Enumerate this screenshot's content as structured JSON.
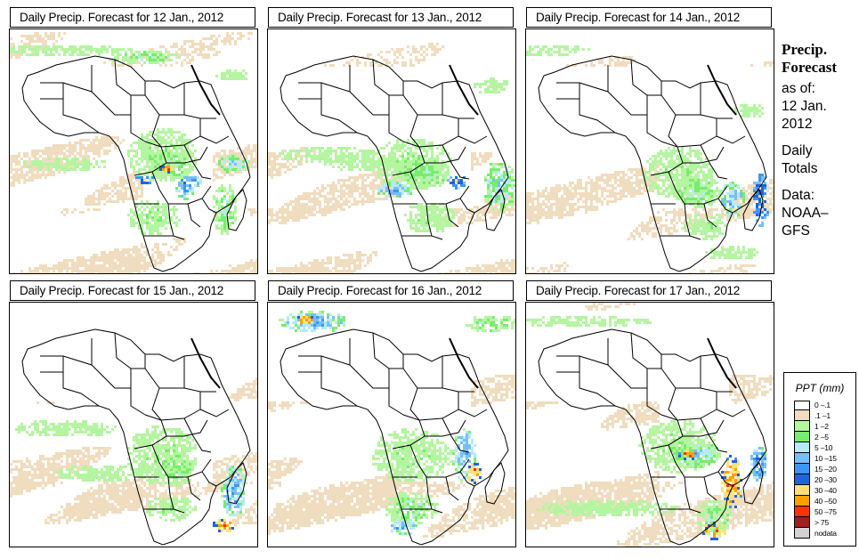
{
  "panels": [
    {
      "title": "Daily Precip. Forecast for  12 Jan., 2012",
      "date": "12 Jan., 2012"
    },
    {
      "title": "Daily Precip. Forecast for  13 Jan., 2012",
      "date": "13 Jan., 2012"
    },
    {
      "title": "Daily Precip. Forecast for  14 Jan., 2012",
      "date": "14 Jan., 2012"
    },
    {
      "title": "Daily Precip. Forecast for  15 Jan., 2012",
      "date": "15 Jan., 2012"
    },
    {
      "title": "Daily Precip. Forecast for  16 Jan., 2012",
      "date": "16 Jan., 2012"
    },
    {
      "title": "Daily Precip. Forecast for  17 Jan., 2012",
      "date": "17 Jan., 2012"
    }
  ],
  "side": {
    "heading_line1": "Precip.",
    "heading_line2": "Forecast",
    "as_of_label": "as of:",
    "as_of_date_line1": "12 Jan.",
    "as_of_date_line2": "2012",
    "period_line1": "Daily",
    "period_line2": "Totals",
    "source_label": "Data:",
    "source_line1": "NOAA–",
    "source_line2": "GFS"
  },
  "legend": {
    "title": "PPT (mm)",
    "items": [
      {
        "label": "0 –.1",
        "color": "#ffffff"
      },
      {
        "label": ".1 –1",
        "color": "#f0dcbe"
      },
      {
        "label": "1 –2",
        "color": "#b4f5a0"
      },
      {
        "label": "2 –5",
        "color": "#78ec6e"
      },
      {
        "label": "5 –10",
        "color": "#b4ebf8"
      },
      {
        "label": "10 –15",
        "color": "#78bef8"
      },
      {
        "label": "15 –20",
        "color": "#3c96f5"
      },
      {
        "label": "20 –30",
        "color": "#1e64dc"
      },
      {
        "label": "30 –40",
        "color": "#ffe178"
      },
      {
        "label": "40 –50",
        "color": "#ffa000"
      },
      {
        "label": "50 –75",
        "color": "#ff3200"
      },
      {
        "label": "> 75",
        "color": "#a01e1e"
      },
      {
        "label": "nodata",
        "color": "#d2d2d2"
      }
    ]
  }
}
